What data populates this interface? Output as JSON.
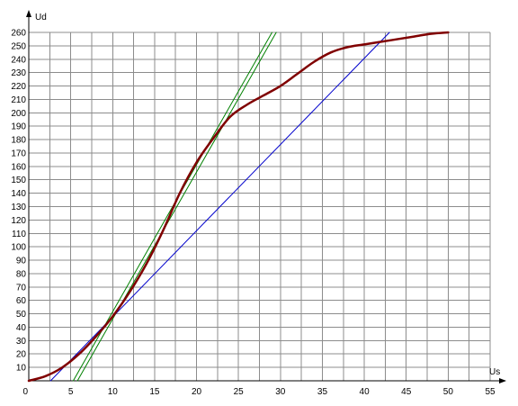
{
  "chart_data": {
    "type": "line",
    "title": "",
    "xlabel": "Us",
    "ylabel": "Ud",
    "origin_label": "0",
    "xlim": [
      0,
      55
    ],
    "ylim": [
      0,
      260
    ],
    "x_ticks": [
      5,
      10,
      15,
      20,
      25,
      30,
      35,
      40,
      45,
      50,
      55
    ],
    "x_tick_labels": [
      "5",
      "10",
      "15",
      "20",
      "25",
      "30",
      "35",
      "40",
      "45",
      "50",
      "55"
    ],
    "y_ticks": [
      10,
      20,
      30,
      40,
      50,
      60,
      70,
      80,
      90,
      100,
      110,
      120,
      130,
      140,
      150,
      160,
      170,
      180,
      190,
      200,
      210,
      220,
      230,
      240,
      250,
      260
    ],
    "y_tick_labels": [
      "10",
      "20",
      "30",
      "40",
      "50",
      "60",
      "70",
      "80",
      "90",
      "100",
      "110",
      "120",
      "130",
      "140",
      "150",
      "160",
      "170",
      "180",
      "190",
      "200",
      "210",
      "220",
      "230",
      "240",
      "250",
      "260"
    ],
    "grid": true,
    "legend": "none",
    "series": [
      {
        "color": "#800000",
        "width": 2.5,
        "x": [
          0,
          2,
          4,
          6,
          8,
          10,
          12,
          14,
          16,
          18,
          20,
          22,
          24,
          26,
          28,
          30,
          32,
          34,
          36,
          38,
          40,
          42,
          44,
          46,
          48,
          50
        ],
        "y": [
          0,
          3.5,
          10,
          20,
          33,
          48,
          66,
          87,
          112,
          140,
          163,
          181,
          197,
          206,
          213,
          220,
          229,
          238,
          245,
          249,
          251,
          253,
          255,
          257,
          259,
          260
        ]
      },
      {
        "color": "#008000",
        "width": 1,
        "x": [
          5.8,
          29.5
        ],
        "y": [
          0,
          260
        ]
      },
      {
        "color": "#008000",
        "width": 1,
        "x": [
          5.3,
          29.0
        ],
        "y": [
          0,
          260
        ]
      },
      {
        "color": "#0000cc",
        "width": 1,
        "x": [
          2.6,
          43.0
        ],
        "y": [
          0,
          260
        ]
      }
    ]
  }
}
